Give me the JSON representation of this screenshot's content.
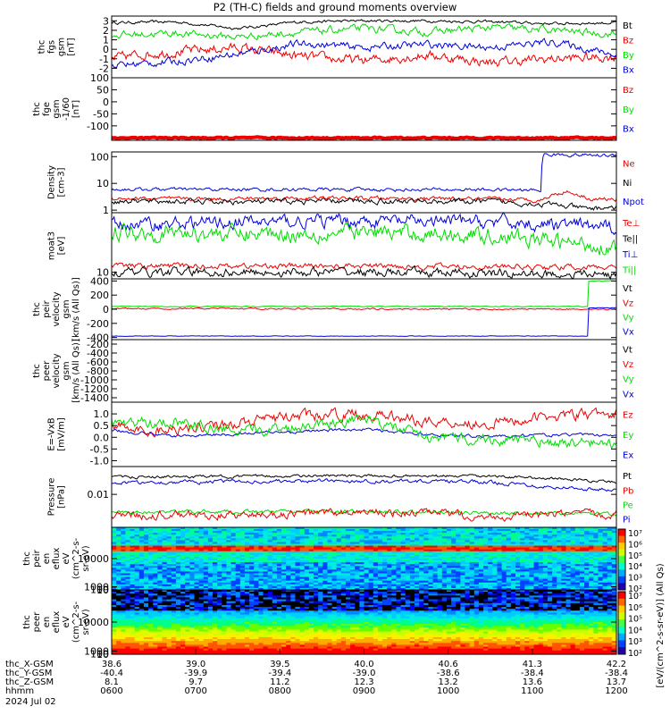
{
  "title": "P2 (TH-C) fields and ground moments overview",
  "colors": {
    "black": "#000000",
    "red": "#ee0000",
    "green": "#00dd00",
    "blue": "#0000dd"
  },
  "chart_data": [
    {
      "type": "line",
      "ylabel": [
        "thc",
        "fgs",
        "gsm",
        "[nT]"
      ],
      "ylim": [
        -3,
        3.5
      ],
      "yticks": [
        "3",
        "2",
        "1",
        "0",
        "-1",
        "-2"
      ],
      "ytick_values": [
        3,
        2,
        1,
        0,
        -1,
        -2
      ],
      "legend": [
        {
          "name": "Bt",
          "color": "black"
        },
        {
          "name": "Bz",
          "color": "red"
        },
        {
          "name": "By",
          "color": "green"
        },
        {
          "name": "Bx",
          "color": "blue"
        }
      ],
      "series": [
        {
          "name": "Bt",
          "color": "black",
          "keys": [
            [
              0,
              2.8
            ],
            [
              1,
              2.9
            ],
            [
              2,
              2.2
            ],
            [
              3,
              2.9
            ],
            [
              4,
              3.0
            ],
            [
              5,
              3.0
            ],
            [
              6,
              2.9
            ],
            [
              7,
              2.7
            ],
            [
              8,
              2.8
            ]
          ],
          "noise": 0.12
        },
        {
          "name": "Bz",
          "color": "red",
          "keys": [
            [
              0,
              -1.0
            ],
            [
              0.5,
              -0.5
            ],
            [
              1,
              -0.3
            ],
            [
              2,
              0.2
            ],
            [
              3,
              -0.8
            ],
            [
              4,
              -1.2
            ],
            [
              5,
              -0.6
            ],
            [
              6,
              -1.4
            ],
            [
              7,
              -1.0
            ],
            [
              8,
              -0.8
            ]
          ],
          "noise": 0.4
        },
        {
          "name": "By",
          "color": "green",
          "keys": [
            [
              0,
              1.5
            ],
            [
              1,
              1.7
            ],
            [
              2,
              1.3
            ],
            [
              3,
              1.8
            ],
            [
              4,
              2.2
            ],
            [
              5,
              1.8
            ],
            [
              6,
              2.3
            ],
            [
              7,
              2.0
            ],
            [
              8,
              1.6
            ]
          ],
          "noise": 0.3
        },
        {
          "name": "Bx",
          "color": "blue",
          "keys": [
            [
              0,
              -1.7
            ],
            [
              1,
              -1.3
            ],
            [
              2,
              -0.5
            ],
            [
              3,
              0.6
            ],
            [
              4,
              0.2
            ],
            [
              5,
              0.5
            ],
            [
              6,
              0.2
            ],
            [
              7,
              0.8
            ],
            [
              8,
              -0.6
            ]
          ],
          "noise": 0.3
        }
      ]
    },
    {
      "type": "line",
      "ylabel": [
        "thc",
        "fge",
        "gsm",
        "-1/60",
        "[nT]"
      ],
      "ylim": [
        -160,
        100
      ],
      "yticks": [
        "100",
        "50",
        "0",
        "-50",
        "-100"
      ],
      "ytick_values": [
        100,
        50,
        0,
        -50,
        -100
      ],
      "legend": [
        {
          "name": "Bz",
          "color": "red"
        },
        {
          "name": "By",
          "color": "green"
        },
        {
          "name": "Bx",
          "color": "blue"
        }
      ],
      "series": [
        {
          "name": "Bz",
          "color": "red",
          "keys": [
            [
              0,
              -150
            ],
            [
              8,
              -150
            ]
          ],
          "noise": 2
        }
      ]
    },
    {
      "type": "line",
      "scale": "log",
      "ylabel": [
        "Density",
        "[cm-3]"
      ],
      "ylim": [
        0.8,
        150
      ],
      "yticks": [
        "100",
        "10",
        "1"
      ],
      "ytick_values": [
        100,
        10,
        1
      ],
      "legend": [
        {
          "name": "Ne",
          "color": "red"
        },
        {
          "name": "Ni",
          "color": "black"
        },
        {
          "name": "Npot",
          "color": "blue"
        }
      ],
      "series": [
        {
          "name": "Npot",
          "color": "blue",
          "keys": [
            [
              0,
              6
            ],
            [
              6,
              5.8
            ],
            [
              6.8,
              5.5
            ],
            [
              6.85,
              120
            ],
            [
              8,
              110
            ]
          ],
          "noise": 0.05
        },
        {
          "name": "Ne",
          "color": "red",
          "keys": [
            [
              0,
              2.8
            ],
            [
              1,
              2.6
            ],
            [
              3,
              2.8
            ],
            [
              5,
              2.7
            ],
            [
              6.8,
              2.4
            ],
            [
              7.2,
              5
            ],
            [
              7.6,
              2.6
            ],
            [
              8,
              2.5
            ]
          ],
          "noise": 0.06
        },
        {
          "name": "Ni",
          "color": "black",
          "keys": [
            [
              0,
              2.2
            ],
            [
              2,
              2.0
            ],
            [
              4,
              2.2
            ],
            [
              6,
              2.1
            ],
            [
              7,
              1.6
            ],
            [
              7.5,
              1.1
            ],
            [
              8,
              1.3
            ]
          ],
          "noise": 0.08
        }
      ]
    },
    {
      "type": "line",
      "scale": "log",
      "ylabel": [
        "moat3",
        "[eV]"
      ],
      "ylim": [
        7,
        250
      ],
      "yticks": [
        "10"
      ],
      "ytick_values": [
        10
      ],
      "legend": [
        {
          "name": "Te⊥",
          "color": "red"
        },
        {
          "name": "Te||",
          "color": "black"
        },
        {
          "name": "Ti⊥",
          "color": "blue"
        },
        {
          "name": "Ti||",
          "color": "green"
        }
      ],
      "series": [
        {
          "name": "Ti⊥",
          "color": "blue",
          "keys": [
            [
              0,
              130
            ],
            [
              2,
              150
            ],
            [
              4,
              160
            ],
            [
              6,
              150
            ],
            [
              8,
              110
            ]
          ],
          "noise": 0.12
        },
        {
          "name": "Ti||",
          "color": "green",
          "keys": [
            [
              0,
              90
            ],
            [
              2,
              80
            ],
            [
              4,
              85
            ],
            [
              6,
              75
            ],
            [
              7,
              50
            ],
            [
              8,
              40
            ]
          ],
          "noise": 0.15
        },
        {
          "name": "Te⊥",
          "color": "red",
          "keys": [
            [
              0,
              14
            ],
            [
              4,
              14
            ],
            [
              8,
              13
            ]
          ],
          "noise": 0.05
        },
        {
          "name": "Te||",
          "color": "black",
          "keys": [
            [
              0,
              10
            ],
            [
              4,
              10
            ],
            [
              7,
              9
            ],
            [
              8,
              9
            ]
          ],
          "noise": 0.08
        }
      ]
    },
    {
      "type": "line",
      "ylabel": [
        "thc",
        "peir",
        "velocity",
        "gsm",
        "[km/s (All Qs)]"
      ],
      "ylim": [
        -430,
        430
      ],
      "yticks": [
        "400",
        "200",
        "0",
        "-200",
        "-400"
      ],
      "ytick_values": [
        400,
        200,
        0,
        -200,
        -400
      ],
      "legend": [
        {
          "name": "Vt",
          "color": "black"
        },
        {
          "name": "Vz",
          "color": "red"
        },
        {
          "name": "Vy",
          "color": "green"
        },
        {
          "name": "Vx",
          "color": "blue"
        }
      ],
      "series": [
        {
          "name": "Vy",
          "color": "green",
          "keys": [
            [
              0,
              40
            ],
            [
              7.55,
              40
            ],
            [
              7.56,
              400
            ],
            [
              8,
              400
            ]
          ],
          "noise": 5
        },
        {
          "name": "Vz",
          "color": "red",
          "keys": [
            [
              0,
              10
            ],
            [
              8,
              0
            ]
          ],
          "noise": 8
        },
        {
          "name": "Vx",
          "color": "blue",
          "keys": [
            [
              0,
              -380
            ],
            [
              7.55,
              -380
            ],
            [
              7.56,
              20
            ],
            [
              8,
              20
            ]
          ],
          "noise": 3
        }
      ]
    },
    {
      "type": "line",
      "ylabel": [
        "thc",
        "peer",
        "velocity",
        "gsm",
        "[km/s (All Qs)]"
      ],
      "ylim": [
        -1500,
        -100
      ],
      "yticks": [
        "-200",
        "-400",
        "-600",
        "-800",
        "-1000",
        "-1200",
        "-1400"
      ],
      "ytick_values": [
        -200,
        -400,
        -600,
        -800,
        -1000,
        -1200,
        -1400
      ],
      "legend": [
        {
          "name": "Vt",
          "color": "black"
        },
        {
          "name": "Vz",
          "color": "red"
        },
        {
          "name": "Vy",
          "color": "green"
        },
        {
          "name": "Vx",
          "color": "blue"
        }
      ],
      "series": []
    },
    {
      "type": "line",
      "ylabel": [
        "E=-VxB",
        "[mV/m]"
      ],
      "ylim": [
        -1.25,
        1.5
      ],
      "yticks": [
        "1.0",
        "0.5",
        "0.0",
        "-0.5",
        "-1.0"
      ],
      "ytick_values": [
        1.0,
        0.5,
        0.0,
        -0.5,
        -1.0
      ],
      "legend": [
        {
          "name": "Ez",
          "color": "red"
        },
        {
          "name": "Ey",
          "color": "green"
        },
        {
          "name": "Ex",
          "color": "blue"
        }
      ],
      "series": [
        {
          "name": "Ex",
          "color": "blue",
          "keys": [
            [
              0,
              0.3
            ],
            [
              1,
              0.05
            ],
            [
              2,
              0.15
            ],
            [
              3,
              0.25
            ],
            [
              4,
              0.35
            ],
            [
              5,
              0.1
            ],
            [
              6,
              0.05
            ],
            [
              7,
              0.1
            ],
            [
              8,
              0.1
            ]
          ],
          "noise": 0.05
        },
        {
          "name": "Ez",
          "color": "red",
          "keys": [
            [
              0,
              0.6
            ],
            [
              0.5,
              0.2
            ],
            [
              1,
              0.4
            ],
            [
              2,
              0.6
            ],
            [
              3,
              0.9
            ],
            [
              4,
              1.0
            ],
            [
              5,
              0.7
            ],
            [
              6,
              0.6
            ],
            [
              7,
              0.9
            ],
            [
              8,
              1.0
            ]
          ],
          "noise": 0.18
        },
        {
          "name": "Ey",
          "color": "green",
          "keys": [
            [
              0,
              0.6
            ],
            [
              0.5,
              0.6
            ],
            [
              1,
              0.7
            ],
            [
              2,
              0.2
            ],
            [
              3,
              0.5
            ],
            [
              4,
              0.8
            ],
            [
              5,
              0.0
            ],
            [
              6,
              -0.1
            ],
            [
              7,
              -0.2
            ],
            [
              8,
              -0.3
            ]
          ],
          "noise": 0.18
        }
      ]
    },
    {
      "type": "line",
      "scale": "log",
      "ylabel": [
        "Pressure",
        "[nPa]"
      ],
      "ylim": [
        0.0012,
        0.06
      ],
      "yticks": [
        "0.01"
      ],
      "ytick_values": [
        0.01
      ],
      "legend": [
        {
          "name": "Pt",
          "color": "black"
        },
        {
          "name": "Pb",
          "color": "red"
        },
        {
          "name": "Pe",
          "color": "green"
        },
        {
          "name": "Pi",
          "color": "blue"
        }
      ],
      "series": [
        {
          "name": "Pt",
          "color": "black",
          "keys": [
            [
              0,
              0.03
            ],
            [
              2,
              0.032
            ],
            [
              4,
              0.033
            ],
            [
              6,
              0.032
            ],
            [
              7,
              0.028
            ],
            [
              8,
              0.022
            ]
          ],
          "noise": 0.03
        },
        {
          "name": "Pi",
          "color": "blue",
          "keys": [
            [
              0,
              0.021
            ],
            [
              2,
              0.023
            ],
            [
              4,
              0.024
            ],
            [
              6,
              0.022
            ],
            [
              7,
              0.016
            ],
            [
              8,
              0.013
            ]
          ],
          "noise": 0.04
        },
        {
          "name": "Pe",
          "color": "green",
          "keys": [
            [
              0,
              0.0032
            ],
            [
              2,
              0.0033
            ],
            [
              4,
              0.0033
            ],
            [
              6,
              0.003
            ],
            [
              8,
              0.0028
            ]
          ],
          "noise": 0.04
        },
        {
          "name": "Pb",
          "color": "red",
          "keys": [
            [
              0,
              0.0028
            ],
            [
              1,
              0.0026
            ],
            [
              2,
              0.0026
            ],
            [
              3,
              0.0029
            ],
            [
              4,
              0.0031
            ],
            [
              5,
              0.003
            ],
            [
              6,
              0.0024
            ],
            [
              7,
              0.0026
            ],
            [
              8,
              0.0029
            ]
          ],
          "noise": 0.09
        }
      ]
    },
    {
      "type": "heatmap",
      "ylabel": [
        "thc",
        "peir",
        "en",
        "eflux",
        "eV",
        "(cm^2-s-",
        "sr-eV)"
      ],
      "ylim": [
        5,
        20000
      ],
      "yticks": [
        "10000",
        "1000",
        "100",
        "10"
      ],
      "ytick_values": [
        10000,
        1000,
        100,
        10
      ]
    },
    {
      "type": "heatmap",
      "ylabel": [
        "thc",
        "peer",
        "en",
        "eflux",
        "eV",
        "(cm^2-s-",
        "sr-eV)"
      ],
      "ylim": [
        5,
        20000
      ],
      "yticks": [
        "10000",
        "1000",
        "100",
        "10"
      ],
      "ytick_values": [
        10000,
        1000,
        100,
        10
      ]
    }
  ],
  "colorbar": {
    "label": "[eV/(cm^2-s-sr-eV)] (All Qs)",
    "range_exponents": [
      2,
      7
    ],
    "ticks": [
      "10⁷",
      "10⁶",
      "10⁵",
      "10⁴",
      "10³",
      "10²",
      "10⁷",
      "10⁶",
      "10⁵",
      "10⁴",
      "10³",
      "10²"
    ]
  },
  "xaxis": {
    "rows": [
      {
        "label": "thc_X-GSM",
        "values": [
          "38.6",
          "39.0",
          "39.5",
          "40.0",
          "40.6",
          "41.3",
          "42.2"
        ]
      },
      {
        "label": "thc_Y-GSM",
        "values": [
          "-40.4",
          "-39.9",
          "-39.4",
          "-39.0",
          "-38.6",
          "-38.4",
          "-38.4"
        ]
      },
      {
        "label": "thc_Z-GSM",
        "values": [
          "8.1",
          "9.7",
          "11.2",
          "12.3",
          "13.2",
          "13.6",
          "13.7"
        ]
      },
      {
        "label": "hhmm",
        "values": [
          "0600",
          "0700",
          "0800",
          "0900",
          "1000",
          "1100",
          "1200"
        ]
      }
    ],
    "date": "2024 Jul 02",
    "hour_range": [
      0,
      6
    ]
  }
}
